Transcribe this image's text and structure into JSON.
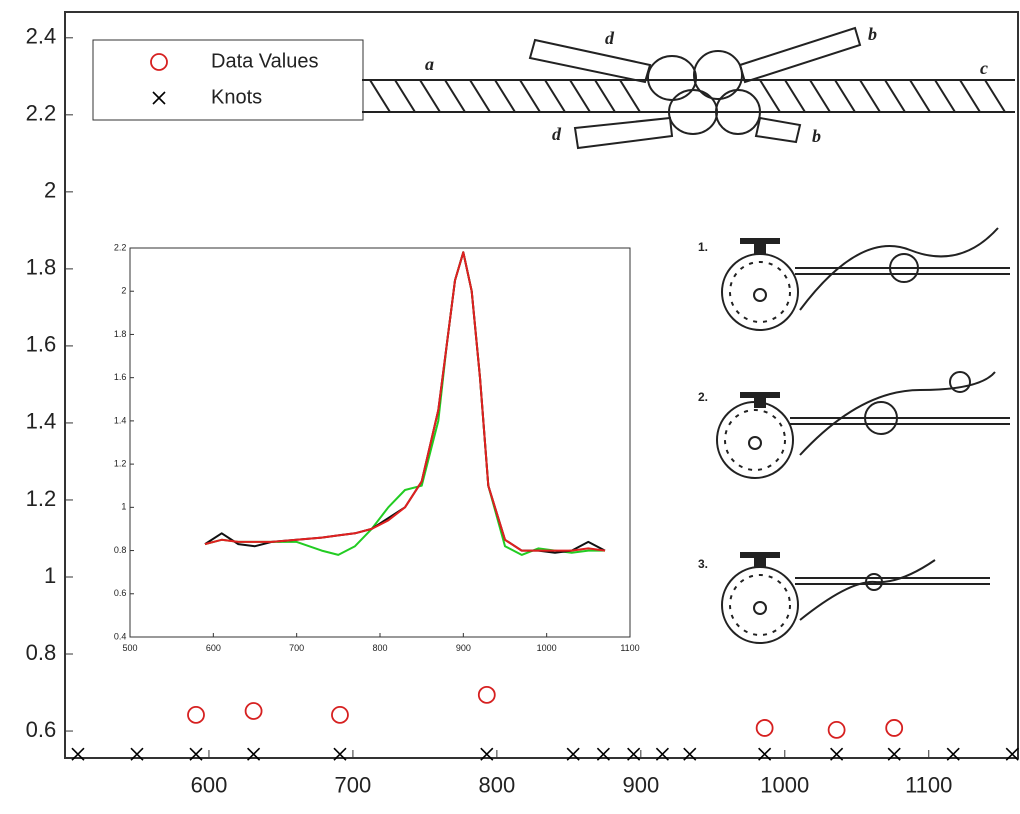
{
  "chart_data": [
    {
      "type": "scatter",
      "series": [
        {
          "name": "Data Values",
          "color": "#d62020",
          "marker": "o",
          "x": [
            591,
            631,
            691,
            793,
            986,
            1036,
            1076
          ],
          "values": [
            0.642,
            0.652,
            0.642,
            0.694,
            0.608,
            0.603,
            0.608
          ]
        },
        {
          "name": "Knots",
          "color": "#000000",
          "marker": "x",
          "x": [
            509,
            550,
            591,
            631,
            691,
            793,
            853,
            874,
            895,
            915,
            934,
            986,
            1036,
            1076,
            1117,
            1158
          ],
          "values": [
            0.54,
            0.54,
            0.54,
            0.54,
            0.54,
            0.54,
            0.54,
            0.54,
            0.54,
            0.54,
            0.54,
            0.54,
            0.54,
            0.54,
            0.54,
            0.54
          ]
        }
      ],
      "xlim": [
        500,
        1162
      ],
      "ylim": [
        0.53,
        2.467
      ],
      "xticks": [
        600,
        700,
        800,
        900,
        1000,
        1100
      ],
      "yticks": [
        0.6,
        0.8,
        1,
        1.2,
        1.4,
        1.6,
        1.8,
        2,
        2.2,
        2.4
      ],
      "legend": "upper left",
      "grid": false
    },
    {
      "type": "line",
      "x": [
        590,
        610,
        630,
        650,
        670,
        700,
        730,
        750,
        770,
        790,
        810,
        830,
        850,
        870,
        880,
        890,
        900,
        910,
        920,
        930,
        950,
        970,
        990,
        1010,
        1030,
        1050,
        1070
      ],
      "series": [
        {
          "color": "#22cc22",
          "values": [
            0.83,
            0.85,
            0.84,
            0.84,
            0.84,
            0.84,
            0.8,
            0.78,
            0.82,
            0.9,
            1.0,
            1.08,
            1.1,
            1.4,
            1.75,
            2.05,
            2.18,
            2.0,
            1.6,
            1.1,
            0.82,
            0.78,
            0.81,
            0.8,
            0.79,
            0.8,
            0.8
          ]
        },
        {
          "color": "#111111",
          "values": [
            0.83,
            0.88,
            0.83,
            0.82,
            0.84,
            0.85,
            0.86,
            0.87,
            0.88,
            0.9,
            0.95,
            1.0,
            1.12,
            1.45,
            1.75,
            2.05,
            2.18,
            2.0,
            1.6,
            1.1,
            0.85,
            0.8,
            0.8,
            0.79,
            0.8,
            0.84,
            0.8
          ]
        },
        {
          "color": "#e02020",
          "values": [
            0.83,
            0.85,
            0.84,
            0.84,
            0.84,
            0.85,
            0.86,
            0.87,
            0.88,
            0.9,
            0.94,
            1.0,
            1.12,
            1.45,
            1.75,
            2.05,
            2.18,
            2.0,
            1.6,
            1.1,
            0.85,
            0.8,
            0.8,
            0.8,
            0.8,
            0.81,
            0.8
          ]
        }
      ],
      "xlim": [
        500,
        1100
      ],
      "ylim": [
        0.4,
        2.2
      ],
      "xticks": [
        500,
        600,
        700,
        800,
        900,
        1000,
        1100
      ],
      "yticks": [
        0.4,
        0.6,
        0.8,
        1,
        1.2,
        1.4,
        1.6,
        1.8,
        2,
        2.2
      ]
    }
  ],
  "illustrations": {
    "rope_labels": [
      "a",
      "b",
      "c",
      "d",
      "d",
      "b"
    ],
    "steps": [
      "1.",
      "2.",
      "3."
    ]
  }
}
